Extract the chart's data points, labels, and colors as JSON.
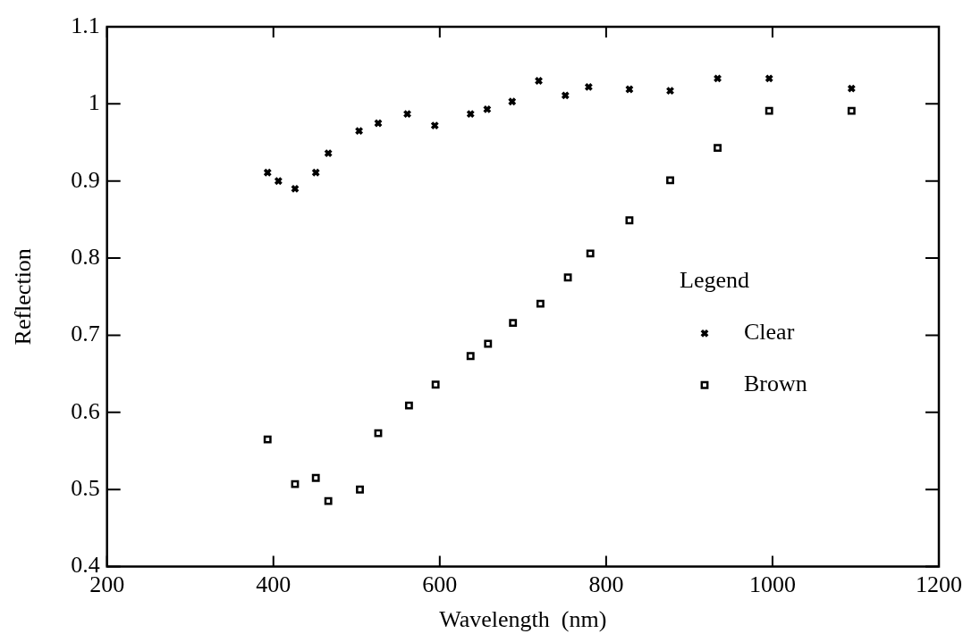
{
  "chart_data": {
    "type": "scatter",
    "xlabel": "Wavelength  (nm)",
    "ylabel": "Reflection",
    "legend_title": "Legend",
    "legend": "right",
    "grid": false,
    "xlim": [
      200,
      1200
    ],
    "xticks": [
      200,
      400,
      600,
      800,
      1000,
      1200
    ],
    "ylim": [
      0.4,
      1.1
    ],
    "yticks": [
      0.4,
      0.5,
      0.6,
      0.7,
      0.8,
      0.9,
      1,
      1.1
    ],
    "series": [
      {
        "name": "Clear",
        "color": "#000000",
        "marker": "cross",
        "x": [
          393,
          406,
          426,
          451,
          466,
          503,
          526,
          561,
          594,
          637,
          657,
          687,
          719,
          751,
          779,
          828,
          877,
          934,
          996,
          1095
        ],
        "values": [
          0.911,
          0.9,
          0.89,
          0.911,
          0.936,
          0.965,
          0.975,
          0.987,
          0.972,
          0.987,
          0.993,
          1.003,
          1.03,
          1.011,
          1.022,
          1.019,
          1.017,
          1.033,
          1.033,
          1.02
        ]
      },
      {
        "name": "Brown",
        "color": "#000000",
        "marker": "square",
        "x": [
          393,
          426,
          451,
          466,
          504,
          526,
          563,
          595,
          637,
          658,
          688,
          721,
          754,
          781,
          828,
          877,
          934,
          996,
          1095
        ],
        "values": [
          0.565,
          0.507,
          0.515,
          0.485,
          0.5,
          0.573,
          0.609,
          0.636,
          0.673,
          0.689,
          0.716,
          0.741,
          0.775,
          0.806,
          0.849,
          0.901,
          0.943,
          0.991,
          0.991
        ]
      }
    ]
  }
}
